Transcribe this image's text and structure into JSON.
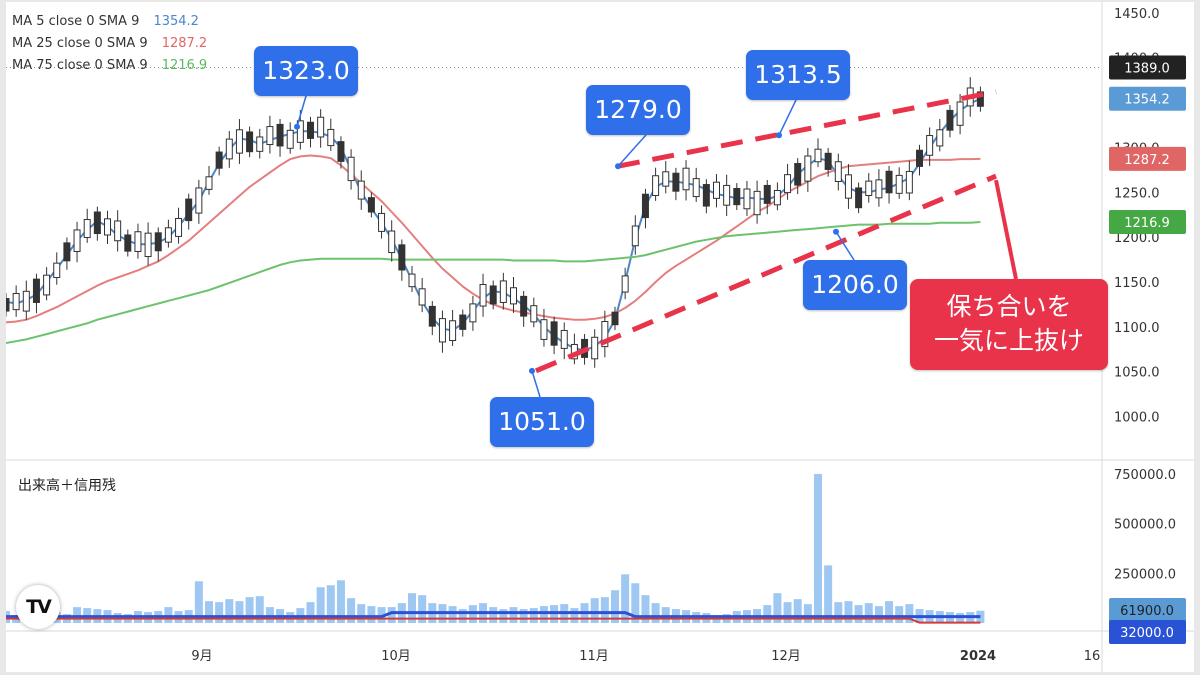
{
  "chart_data": [
    {
      "type": "candlestick",
      "xlabel": "",
      "ylabel": "",
      "x_ticks": [
        "9月",
        "10月",
        "11月",
        "12月",
        "2024",
        "16"
      ],
      "y_ticks": [
        1000.0,
        1050.0,
        1100.0,
        1150.0,
        1200.0,
        1250.0,
        1300.0,
        1350.0,
        1400.0,
        1450.0
      ],
      "ylim": [
        955,
        1462
      ],
      "grid": false,
      "legend": "top-left",
      "legend_entries": [
        {
          "name": "MA 5 close 0 SMA 9",
          "value": "1354.2",
          "color": "#4a86c8"
        },
        {
          "name": "MA 25 close 0 SMA 9",
          "value": "1287.2",
          "color": "#e06666"
        },
        {
          "name": "MA 75 close 0 SMA 9",
          "value": "1216.9",
          "color": "#5cb85c"
        }
      ],
      "price_labels": [
        {
          "text": "1389.0",
          "value": 1389.0,
          "color": "#222222"
        },
        {
          "text": "1354.2",
          "value": 1354.2,
          "color": "#5b9bd5"
        },
        {
          "text": "1287.2",
          "value": 1287.2,
          "color": "#e06666"
        },
        {
          "text": "1216.9",
          "value": 1216.9,
          "color": "#45a845"
        }
      ],
      "annotations": [
        {
          "text": "1323.0",
          "value": 1323.0
        },
        {
          "text": "1279.0",
          "value": 1279.0
        },
        {
          "text": "1313.5",
          "value": 1313.5
        },
        {
          "text": "1206.0",
          "value": 1206.0
        },
        {
          "text": "1051.0",
          "value": 1051.0
        }
      ],
      "note": {
        "line1": "保ち合いを",
        "line2": "一気に上抜け",
        "color": "#e8334a"
      },
      "series": [
        {
          "name": "MA 5",
          "values": [
            1128,
            1126,
            1130,
            1136,
            1150,
            1165,
            1180,
            1196,
            1208,
            1218,
            1212,
            1202,
            1196,
            1192,
            1192,
            1194,
            1200,
            1212,
            1226,
            1240,
            1262,
            1282,
            1298,
            1310,
            1308,
            1304,
            1308,
            1312,
            1315,
            1318,
            1318,
            1316,
            1312,
            1300,
            1275,
            1250,
            1232,
            1216,
            1198,
            1175,
            1152,
            1128,
            1110,
            1098,
            1096,
            1104,
            1118,
            1132,
            1140,
            1138,
            1132,
            1124,
            1114,
            1100,
            1090,
            1082,
            1076,
            1074,
            1078,
            1088,
            1108,
            1150,
            1198,
            1235,
            1256,
            1262,
            1262,
            1260,
            1258,
            1253,
            1248,
            1246,
            1243,
            1244,
            1243,
            1242,
            1246,
            1256,
            1270,
            1280,
            1288,
            1285,
            1268,
            1255,
            1250,
            1250,
            1253,
            1255,
            1260,
            1266,
            1282,
            1300,
            1316,
            1330,
            1341,
            1349,
            1354.2
          ]
        },
        {
          "name": "MA 25",
          "values": [
            1105,
            1106,
            1108,
            1112,
            1117,
            1122,
            1128,
            1134,
            1140,
            1146,
            1151,
            1155,
            1159,
            1163,
            1168,
            1173,
            1180,
            1188,
            1196,
            1206,
            1216,
            1226,
            1236,
            1246,
            1256,
            1264,
            1272,
            1280,
            1287,
            1290,
            1291,
            1290,
            1288,
            1280,
            1270,
            1260,
            1250,
            1240,
            1228,
            1216,
            1203,
            1190,
            1177,
            1165,
            1155,
            1145,
            1137,
            1130,
            1125,
            1121,
            1118,
            1116,
            1114,
            1112,
            1110,
            1109,
            1108,
            1108,
            1109,
            1111,
            1115,
            1121,
            1129,
            1139,
            1150,
            1160,
            1168,
            1175,
            1182,
            1189,
            1196,
            1204,
            1212,
            1220,
            1228,
            1234,
            1242,
            1250,
            1256,
            1262,
            1268,
            1272,
            1276,
            1279,
            1280,
            1281,
            1282,
            1283,
            1284,
            1285,
            1286,
            1286,
            1286,
            1286,
            1287,
            1287,
            1287.2
          ]
        },
        {
          "name": "MA 75",
          "values": [
            1082,
            1084,
            1086,
            1089,
            1092,
            1095,
            1098,
            1101,
            1104,
            1108,
            1111,
            1114,
            1117,
            1120,
            1123,
            1126,
            1129,
            1132,
            1135,
            1138,
            1141,
            1145,
            1149,
            1153,
            1157,
            1161,
            1165,
            1169,
            1172,
            1174,
            1175,
            1176,
            1176,
            1176,
            1176,
            1176,
            1176,
            1176,
            1175,
            1175,
            1175,
            1175,
            1175,
            1175,
            1175,
            1175,
            1175,
            1175,
            1175,
            1175,
            1174,
            1174,
            1174,
            1174,
            1174,
            1173,
            1173,
            1173,
            1174,
            1175,
            1176,
            1177,
            1178,
            1180,
            1183,
            1186,
            1189,
            1192,
            1195,
            1197,
            1199,
            1201,
            1202,
            1203,
            1204,
            1205,
            1206,
            1207,
            1208,
            1209,
            1210,
            1211,
            1212,
            1213,
            1214,
            1214,
            1214,
            1215,
            1215,
            1215,
            1215,
            1215,
            1216,
            1216,
            1216,
            1216,
            1216.9
          ]
        }
      ]
    },
    {
      "type": "bar",
      "title": "出来高＋信用残",
      "y_ticks": [
        250000.0,
        500000.0,
        750000.0
      ],
      "ylim": [
        0,
        790000
      ],
      "grid": false,
      "price_labels": [
        {
          "text": "61900.0",
          "value": 61900.0,
          "color": "#5b9bd5"
        },
        {
          "text": "32000.0",
          "value": 32000.0,
          "color": "#2a52d4"
        }
      ],
      "series": [
        {
          "name": "",
          "values": [
            60000,
            40000,
            35000,
            45000,
            50000,
            55000,
            45000,
            80000,
            75000,
            70000,
            65000,
            50000,
            45000,
            60000,
            55000,
            60000,
            80000,
            60000,
            65000,
            210000,
            110000,
            105000,
            120000,
            110000,
            130000,
            135000,
            80000,
            70000,
            55000,
            75000,
            105000,
            180000,
            190000,
            215000,
            125000,
            95000,
            85000,
            80000,
            80000,
            100000,
            150000,
            140000,
            100000,
            95000,
            85000,
            70000,
            90000,
            100000,
            80000,
            70000,
            80000,
            70000,
            75000,
            85000,
            90000,
            95000,
            75000,
            100000,
            125000,
            130000,
            165000,
            245000,
            200000,
            140000,
            100000,
            80000,
            70000,
            65000,
            55000,
            50000,
            40000,
            45000,
            60000,
            65000,
            70000,
            90000,
            150000,
            105000,
            120000,
            95000,
            750000,
            290000,
            105000,
            110000,
            90000,
            100000,
            85000,
            110000,
            85000,
            95000,
            70000,
            65000,
            60000,
            55000,
            50000,
            55000,
            61900
          ]
        },
        {
          "name": "",
          "values": [
            32000,
            32000,
            32000,
            32000,
            32000,
            32000,
            32000,
            32000,
            32000,
            32000,
            32000,
            32000,
            32000,
            32000,
            32000,
            32000,
            32000,
            32000,
            32000,
            32000,
            32000,
            32000,
            32000,
            32000,
            32000,
            32000,
            32000,
            32000,
            32000,
            32000,
            32000,
            32000,
            32000,
            32000,
            32000,
            32000,
            32000,
            32000,
            32000,
            32000,
            32000,
            32000,
            32000,
            32000,
            32000,
            32000,
            32000,
            32000,
            32000,
            32000,
            32000,
            32000,
            32000,
            32000,
            32000,
            32000,
            32000,
            32000,
            32000,
            32000,
            32000,
            32000,
            32000,
            32000,
            32000,
            32000,
            32000,
            32000,
            32000,
            32000,
            32000,
            32000,
            32000,
            32000,
            32000,
            32000,
            32000,
            32000,
            32000,
            32000,
            32000,
            32000,
            32000,
            32000,
            32000,
            32000,
            32000,
            32000,
            32000,
            32000,
            32000,
            32000,
            32000,
            32000,
            32000,
            32000,
            32000
          ]
        }
      ]
    }
  ]
}
